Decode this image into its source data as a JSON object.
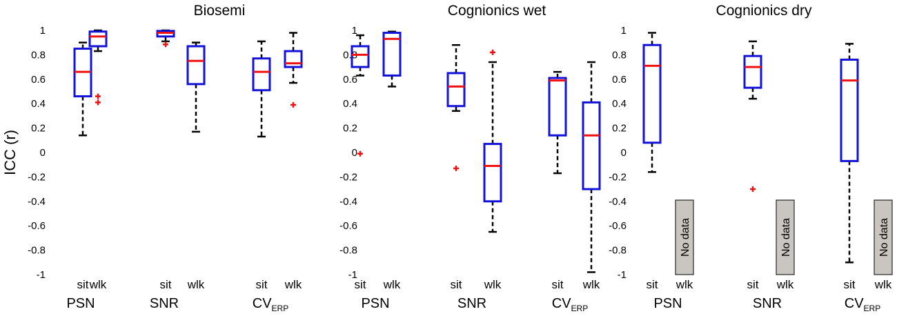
{
  "chart_data": [
    {
      "type": "box",
      "title": "Biosemi",
      "ylabel": "ICC (r)",
      "ylim": [
        -1,
        1
      ],
      "yticks": [
        "1",
        "0.8",
        "0.6",
        "0.4",
        "0.2",
        "0",
        "-0.2",
        "-0.4",
        "-0.6",
        "-0.8",
        "-1"
      ],
      "conditions": [
        "sit",
        "wlk"
      ],
      "groups": [
        {
          "name": "PSN",
          "sub": "",
          "boxes": [
            {
              "cond": "sit",
              "min": 0.14,
              "q1": 0.46,
              "median": 0.66,
              "q3": 0.85,
              "max": 0.9,
              "outliers": []
            },
            {
              "cond": "wlk",
              "min": 0.83,
              "q1": 0.87,
              "median": 0.95,
              "q3": 0.99,
              "max": 1.0,
              "outliers": [
                0.46,
                0.41
              ]
            }
          ]
        },
        {
          "name": "SNR",
          "sub": "",
          "boxes": [
            {
              "cond": "sit",
              "min": 0.91,
              "q1": 0.95,
              "median": 0.98,
              "q3": 0.995,
              "max": 1.0,
              "outliers": [
                0.885
              ]
            },
            {
              "cond": "wlk",
              "min": 0.17,
              "q1": 0.56,
              "median": 0.75,
              "q3": 0.87,
              "max": 0.9,
              "outliers": []
            }
          ]
        },
        {
          "name": "CV",
          "sub": "ERP",
          "boxes": [
            {
              "cond": "sit",
              "min": 0.13,
              "q1": 0.51,
              "median": 0.66,
              "q3": 0.77,
              "max": 0.91,
              "outliers": []
            },
            {
              "cond": "wlk",
              "min": 0.57,
              "q1": 0.7,
              "median": 0.73,
              "q3": 0.83,
              "max": 0.98,
              "outliers": [
                0.39
              ]
            }
          ]
        }
      ]
    },
    {
      "type": "box",
      "title": "Cognionics wet",
      "ylabel": "",
      "ylim": [
        -1,
        1
      ],
      "yticks": [
        "1",
        "0.8",
        "0.6",
        "0.4",
        "0.2",
        "0",
        "-0.2",
        "-0.4",
        "-0.6",
        "-0.8",
        "-1"
      ],
      "conditions": [
        "sit",
        "wlk"
      ],
      "groups": [
        {
          "name": "PSN",
          "sub": "",
          "boxes": [
            {
              "cond": "sit",
              "min": 0.63,
              "q1": 0.7,
              "median": 0.8,
              "q3": 0.87,
              "max": 0.96,
              "outliers": [
                -0.01
              ]
            },
            {
              "cond": "wlk",
              "min": 0.54,
              "q1": 0.63,
              "median": 0.93,
              "q3": 0.98,
              "max": 0.99,
              "outliers": []
            }
          ]
        },
        {
          "name": "SNR",
          "sub": "",
          "boxes": [
            {
              "cond": "sit",
              "min": 0.34,
              "q1": 0.38,
              "median": 0.54,
              "q3": 0.65,
              "max": 0.88,
              "outliers": [
                -0.13
              ]
            },
            {
              "cond": "wlk",
              "min": -0.65,
              "q1": -0.4,
              "median": -0.11,
              "q3": 0.07,
              "max": 0.74,
              "outliers": [
                0.82
              ]
            }
          ]
        },
        {
          "name": "CV",
          "sub": "ERP",
          "boxes": [
            {
              "cond": "sit",
              "min": -0.17,
              "q1": 0.14,
              "median": 0.59,
              "q3": 0.61,
              "max": 0.66,
              "outliers": []
            },
            {
              "cond": "wlk",
              "min": -0.98,
              "q1": -0.3,
              "median": 0.14,
              "q3": 0.41,
              "max": 0.74,
              "outliers": []
            }
          ]
        }
      ]
    },
    {
      "type": "box",
      "title": "Cognionics dry",
      "ylabel": "",
      "ylim": [
        -1,
        1
      ],
      "yticks": [
        "1",
        "0.8",
        "0.6",
        "0.4",
        "0.2",
        "0",
        "-0.2",
        "-0.4",
        "-0.6",
        "-0.8",
        "-1"
      ],
      "conditions": [
        "sit",
        "wlk"
      ],
      "no_data_label": "No data",
      "groups": [
        {
          "name": "PSN",
          "sub": "",
          "boxes": [
            {
              "cond": "sit",
              "min": -0.16,
              "q1": 0.08,
              "median": 0.71,
              "q3": 0.88,
              "max": 0.98,
              "outliers": []
            },
            {
              "cond": "wlk",
              "no_data": true
            }
          ]
        },
        {
          "name": "SNR",
          "sub": "",
          "boxes": [
            {
              "cond": "sit",
              "min": 0.44,
              "q1": 0.53,
              "median": 0.7,
              "q3": 0.79,
              "max": 0.91,
              "outliers": [
                -0.3
              ]
            },
            {
              "cond": "wlk",
              "no_data": true
            }
          ]
        },
        {
          "name": "CV",
          "sub": "ERP",
          "boxes": [
            {
              "cond": "sit",
              "min": -0.9,
              "q1": -0.07,
              "median": 0.59,
              "q3": 0.76,
              "max": 0.89,
              "outliers": []
            },
            {
              "cond": "wlk",
              "no_data": true
            }
          ]
        }
      ]
    }
  ]
}
